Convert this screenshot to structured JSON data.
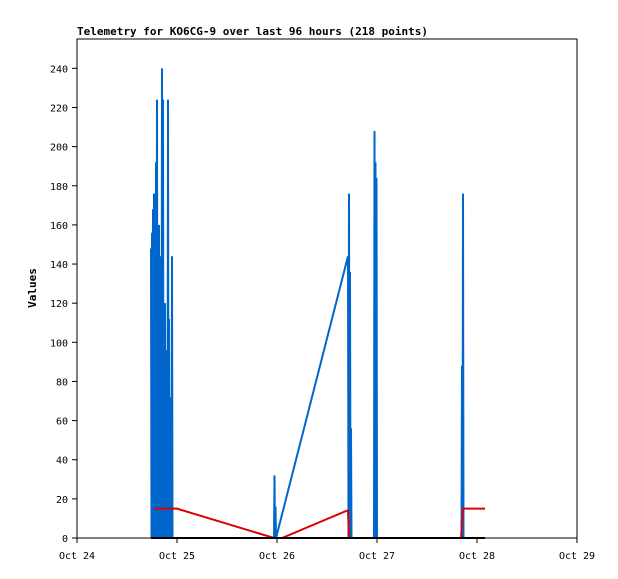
{
  "chart_data": {
    "type": "line",
    "title": "Telemetry for KO6CG-9 over last 96 hours (218 points)",
    "xlabel": "",
    "ylabel": "Values",
    "x_unit": "day",
    "xlim": [
      0,
      5
    ],
    "ylim": [
      0,
      255
    ],
    "yticks": [
      0,
      20,
      40,
      60,
      80,
      100,
      120,
      140,
      160,
      180,
      200,
      220,
      240
    ],
    "xticks": [
      {
        "x": 0,
        "label": "Oct 24"
      },
      {
        "x": 1,
        "label": "Oct 25"
      },
      {
        "x": 2,
        "label": "Oct 26"
      },
      {
        "x": 3,
        "label": "Oct 27"
      },
      {
        "x": 4,
        "label": "Oct 28"
      },
      {
        "x": 5,
        "label": "Oct 29"
      }
    ],
    "grid": false,
    "legend": "none",
    "series": [
      {
        "color": "#0066cc",
        "x": [
          0.74,
          0.745,
          0.75,
          0.755,
          0.76,
          0.765,
          0.77,
          0.775,
          0.78,
          0.785,
          0.79,
          0.795,
          0.8,
          0.805,
          0.81,
          0.815,
          0.82,
          0.825,
          0.83,
          0.835,
          0.84,
          0.845,
          0.85,
          0.855,
          0.86,
          0.865,
          0.87,
          0.875,
          0.88,
          0.885,
          0.89,
          0.895,
          0.9,
          0.905,
          0.91,
          0.915,
          0.92,
          0.925,
          0.93,
          0.935,
          0.94,
          0.945,
          0.95,
          0.955,
          0.96,
          0.965,
          0.97,
          0.975,
          0.98,
          0.985,
          0.99,
          0.995,
          1.0,
          1.005,
          1.01,
          1.015,
          1.02,
          1.97,
          1.975,
          1.98,
          1.985,
          1.99,
          2.71,
          2.715,
          2.72,
          2.725,
          2.73,
          2.735,
          2.74,
          2.745,
          2.75,
          2.755,
          2.76,
          2.97,
          2.975,
          2.98,
          2.985,
          2.99,
          2.995,
          3.0,
          3.005,
          3.01,
          3.84,
          3.845,
          3.85,
          3.855,
          3.86,
          3.865,
          3.87
        ],
        "y": [
          148,
          0,
          156,
          0,
          168,
          0,
          176,
          0,
          176,
          0,
          192,
          0,
          224,
          0,
          112,
          0,
          160,
          0,
          112,
          0,
          144,
          0,
          240,
          0,
          224,
          0,
          32,
          0,
          120,
          0,
          48,
          0,
          96,
          0,
          224,
          0,
          112,
          0,
          48,
          0,
          72,
          0,
          144,
          0,
          0,
          0,
          0,
          0,
          0,
          0,
          0,
          0,
          0,
          0,
          0,
          0,
          0,
          0,
          32,
          0,
          16,
          0,
          144,
          0,
          176,
          0,
          136,
          0,
          56,
          0,
          0,
          0,
          0,
          0,
          208,
          0,
          192,
          0,
          184,
          0,
          0,
          0,
          0,
          0,
          88,
          0,
          176,
          0,
          0
        ],
        "comment_removed": ""
      },
      {
        "color": "#dd0000",
        "x": [
          0.77,
          1.0,
          1.97,
          2.05,
          2.7,
          2.71,
          2.72,
          3.8,
          3.84,
          3.86,
          3.87,
          4.08
        ],
        "y": [
          15,
          15,
          0,
          0,
          14,
          14,
          0,
          0,
          0,
          15,
          15,
          15
        ]
      },
      {
        "color": "#000000",
        "x": [
          0.74,
          4.08
        ],
        "y": [
          0,
          0
        ]
      }
    ]
  }
}
